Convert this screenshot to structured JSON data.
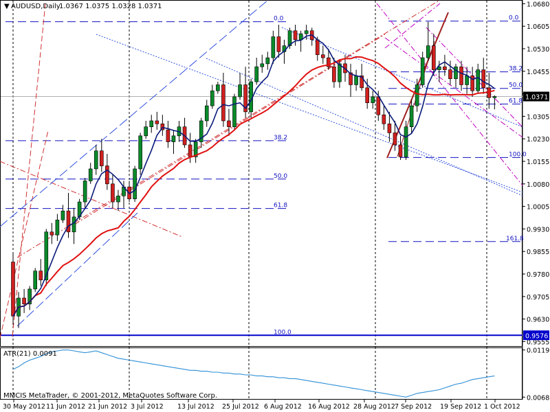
{
  "header": {
    "symbol": "AUDUSD,Daily",
    "ohlc": "1.0367 1.0375 1.0328 1.0371"
  },
  "footer": {
    "copyright": "MMCIS MetaTrader, © 2001-2012, MetaQuotes Software Corp."
  },
  "atr": {
    "label": "ATR(21) 0.0091",
    "ticks": [
      "0.0119",
      "0.0068"
    ],
    "color": "#2e8fd6"
  },
  "colors": {
    "bull": "#0a8a2a",
    "bear": "#d02020",
    "ma_slow": "#e01010",
    "ma_fast": "#0a1a7a",
    "fib": "#1010c0",
    "channel": "#d03030",
    "trend_blue": "#3050e0",
    "magenta": "#c000c0"
  },
  "price_axis": {
    "ticks": [
      "1.0680",
      "1.0605",
      "1.0530",
      "1.0455",
      "1.0380",
      "1.0305",
      "1.0230",
      "1.0155",
      "1.0080",
      "1.0005",
      "0.9930",
      "0.9855",
      "0.9780",
      "0.9705",
      "0.9630",
      "0.9555"
    ],
    "current_price": "1.0371",
    "marked_price": "0.9576"
  },
  "time_axis": [
    "30 May 2012",
    "11 Jun 2012",
    "21 Jun 2012",
    "3 Jul 2012",
    "13 Jul 2012",
    "25 Jul 2012",
    "6 Aug 2012",
    "16 Aug 2012",
    "28 Aug 2012",
    "7 Sep 2012",
    "19 Sep 2012",
    "1 Oct 2012"
  ],
  "fib_left": [
    "0.0",
    "38.2",
    "50.0",
    "61.8",
    "100.0"
  ],
  "fib_right": [
    "0.0",
    "38.2",
    "50.0",
    "61.8",
    "100.0",
    "161.8"
  ],
  "chart_data": {
    "type": "candlestick",
    "title": "AUDUSD,Daily",
    "ylim": [
      0.954,
      1.069
    ],
    "candles": [
      [
        0.982,
        0.985,
        0.961,
        0.964
      ],
      [
        0.964,
        0.972,
        0.96,
        0.97
      ],
      [
        0.97,
        0.973,
        0.965,
        0.968
      ],
      [
        0.968,
        0.974,
        0.966,
        0.973
      ],
      [
        0.973,
        0.98,
        0.972,
        0.979
      ],
      [
        0.979,
        0.983,
        0.974,
        0.976
      ],
      [
        0.976,
        0.993,
        0.974,
        0.992
      ],
      [
        0.992,
        0.995,
        0.988,
        0.991
      ],
      [
        0.991,
        0.998,
        0.989,
        0.996
      ],
      [
        0.996,
        1.001,
        0.995,
        0.999
      ],
      [
        0.999,
        1.005,
        0.99,
        0.992
      ],
      [
        0.992,
        1.0,
        0.988,
        0.997
      ],
      [
        0.997,
        1.003,
        0.996,
        1.002
      ],
      [
        1.002,
        1.01,
        1.0,
        1.009
      ],
      [
        1.009,
        1.015,
        1.008,
        1.013
      ],
      [
        1.013,
        1.021,
        1.011,
        1.019
      ],
      [
        1.019,
        1.023,
        1.012,
        1.014
      ],
      [
        1.014,
        1.018,
        1.006,
        1.008
      ],
      [
        1.008,
        1.011,
        1.0,
        1.002
      ],
      [
        1.002,
        1.006,
        0.999,
        1.004
      ],
      [
        1.004,
        1.009,
        1.0,
        1.007
      ],
      [
        1.007,
        1.009,
        1.002,
        1.003
      ],
      [
        1.003,
        1.014,
        1.002,
        1.013
      ],
      [
        1.013,
        1.025,
        1.011,
        1.024
      ],
      [
        1.024,
        1.029,
        1.023,
        1.027
      ],
      [
        1.027,
        1.031,
        1.025,
        1.029
      ],
      [
        1.029,
        1.032,
        1.026,
        1.028
      ],
      [
        1.028,
        1.031,
        1.024,
        1.026
      ],
      [
        1.026,
        1.029,
        1.02,
        1.022
      ],
      [
        1.022,
        1.026,
        1.018,
        1.024
      ],
      [
        1.024,
        1.029,
        1.022,
        1.027
      ],
      [
        1.027,
        1.03,
        1.02,
        1.021
      ],
      [
        1.021,
        1.025,
        1.015,
        1.017
      ],
      [
        1.017,
        1.023,
        1.015,
        1.022
      ],
      [
        1.022,
        1.03,
        1.02,
        1.029
      ],
      [
        1.029,
        1.036,
        1.027,
        1.034
      ],
      [
        1.034,
        1.041,
        1.033,
        1.039
      ],
      [
        1.039,
        1.042,
        1.038,
        1.041
      ],
      [
        1.041,
        1.045,
        1.027,
        1.029
      ],
      [
        1.029,
        1.033,
        1.024,
        1.027
      ],
      [
        1.027,
        1.038,
        1.026,
        1.037
      ],
      [
        1.037,
        1.045,
        1.036,
        1.041
      ],
      [
        1.041,
        1.047,
        1.03,
        1.032
      ],
      [
        1.032,
        1.043,
        1.03,
        1.042
      ],
      [
        1.042,
        1.05,
        1.041,
        1.047
      ],
      [
        1.047,
        1.051,
        1.045,
        1.048
      ],
      [
        1.048,
        1.052,
        1.046,
        1.05
      ],
      [
        1.05,
        1.059,
        1.048,
        1.057
      ],
      [
        1.057,
        1.061,
        1.05,
        1.052
      ],
      [
        1.052,
        1.056,
        1.048,
        1.054
      ],
      [
        1.054,
        1.06,
        1.053,
        1.059
      ],
      [
        1.059,
        1.061,
        1.054,
        1.056
      ],
      [
        1.056,
        1.059,
        1.052,
        1.058
      ],
      [
        1.058,
        1.061,
        1.056,
        1.059
      ],
      [
        1.059,
        1.06,
        1.054,
        1.056
      ],
      [
        1.056,
        1.057,
        1.049,
        1.051
      ],
      [
        1.051,
        1.054,
        1.048,
        1.05
      ],
      [
        1.05,
        1.053,
        1.046,
        1.047
      ],
      [
        1.047,
        1.05,
        1.04,
        1.042
      ],
      [
        1.042,
        1.049,
        1.04,
        1.048
      ],
      [
        1.048,
        1.051,
        1.042,
        1.045
      ],
      [
        1.045,
        1.048,
        1.037,
        1.041
      ],
      [
        1.041,
        1.046,
        1.039,
        1.044
      ],
      [
        1.044,
        1.048,
        1.039,
        1.04
      ],
      [
        1.04,
        1.043,
        1.033,
        1.035
      ],
      [
        1.035,
        1.039,
        1.033,
        1.037
      ],
      [
        1.037,
        1.039,
        1.029,
        1.031
      ],
      [
        1.031,
        1.034,
        1.026,
        1.028
      ],
      [
        1.028,
        1.032,
        1.022,
        1.025
      ],
      [
        1.025,
        1.029,
        1.019,
        1.021
      ],
      [
        1.021,
        1.024,
        1.016,
        1.017
      ],
      [
        1.017,
        1.029,
        1.016,
        1.027
      ],
      [
        1.027,
        1.036,
        1.025,
        1.034
      ],
      [
        1.034,
        1.043,
        1.032,
        1.041
      ],
      [
        1.041,
        1.052,
        1.04,
        1.05
      ],
      [
        1.05,
        1.062,
        1.049,
        1.054
      ],
      [
        1.054,
        1.058,
        1.044,
        1.046
      ],
      [
        1.046,
        1.049,
        1.042,
        1.047
      ],
      [
        1.047,
        1.051,
        1.044,
        1.046
      ],
      [
        1.046,
        1.049,
        1.041,
        1.043
      ],
      [
        1.043,
        1.048,
        1.04,
        1.047
      ],
      [
        1.047,
        1.049,
        1.039,
        1.041
      ],
      [
        1.041,
        1.047,
        1.038,
        1.044
      ],
      [
        1.044,
        1.047,
        1.037,
        1.039
      ],
      [
        1.039,
        1.048,
        1.038,
        1.046
      ],
      [
        1.046,
        1.05,
        1.038,
        1.04
      ],
      [
        1.04,
        1.045,
        1.033,
        1.0367
      ],
      [
        1.0367,
        1.0375,
        1.0328,
        1.0371
      ]
    ],
    "atr_values": [
      0.0098,
      0.0101,
      0.0105,
      0.0108,
      0.011,
      0.0112,
      0.0115,
      0.0117,
      0.0118,
      0.0119,
      0.0119,
      0.0118,
      0.0117,
      0.0116,
      0.0117,
      0.0118,
      0.0116,
      0.0114,
      0.0112,
      0.011,
      0.0109,
      0.0108,
      0.0107,
      0.0106,
      0.0105,
      0.0104,
      0.0103,
      0.0102,
      0.0101,
      0.01,
      0.0099,
      0.0098,
      0.0097,
      0.0097,
      0.0096,
      0.0096,
      0.0095,
      0.0095,
      0.0094,
      0.0094,
      0.0093,
      0.0093,
      0.0092,
      0.0092,
      0.0091,
      0.0091,
      0.009,
      0.009,
      0.0089,
      0.0089,
      0.0088,
      0.0088,
      0.0087,
      0.0086,
      0.0085,
      0.0084,
      0.0083,
      0.0082,
      0.0081,
      0.008,
      0.0079,
      0.0078,
      0.0077,
      0.0076,
      0.0075,
      0.0074,
      0.0073,
      0.0072,
      0.0071,
      0.007,
      0.0069,
      0.0068,
      0.007,
      0.0072,
      0.0073,
      0.0074,
      0.0075,
      0.0076,
      0.0078,
      0.008,
      0.0082,
      0.0083,
      0.0085,
      0.0087,
      0.0088,
      0.0089,
      0.009,
      0.0091
    ],
    "atr_ylim": [
      0.0066,
      0.0121
    ]
  }
}
